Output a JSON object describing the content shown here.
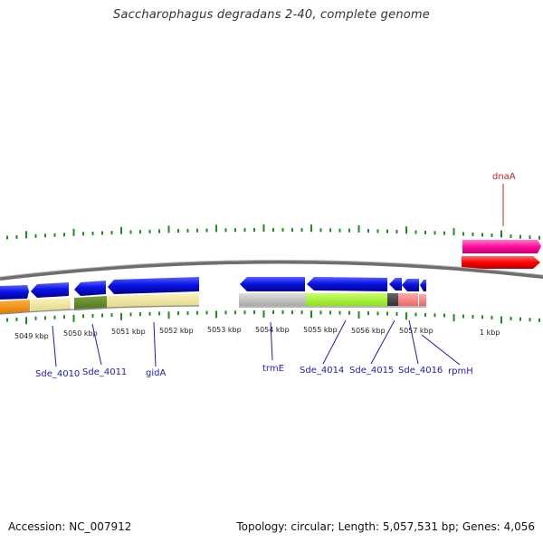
{
  "title": "Saccharophagus degradans 2-40, complete genome",
  "footer": {
    "accession": "Accession: NC_007912",
    "topology": "Topology: circular; Length: 5,057,531 bp; Genes: 4,056"
  },
  "colors": {
    "forward_gene": "#0a14e6",
    "label_blue": "#1c1cb4",
    "label_red": "#c81e1e",
    "tick_green": "#1e8c1e",
    "backbone": "#7a7a7a",
    "dnaA_top": "#ff0f9c",
    "dnaA_bottom": "#ff0000"
  },
  "scale_labels": [
    "5049 kbp",
    "5050 kbp",
    "5051 kbp",
    "5052 kbp",
    "5053 kbp",
    "5054 kbp",
    "5055 kbp",
    "5056 kbp",
    "5057 kbp",
    "1 kbp"
  ],
  "gene_labels": {
    "dnaA": "dnaA",
    "Sde_4010": "Sde_4010",
    "Sde_4011": "Sde_4011",
    "gidA": "gidA",
    "trmE": "trmE",
    "Sde_4014": "Sde_4014",
    "Sde_4015": "Sde_4015",
    "Sde_4016": "Sde_4016",
    "rpmH": "rpmH"
  }
}
